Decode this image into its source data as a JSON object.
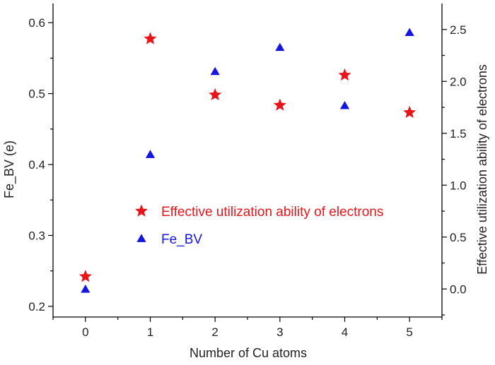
{
  "chart_data": {
    "type": "scatter",
    "title": "",
    "xlabel": "Number of Cu atoms",
    "ylabel_left": "Fe_BV (e)",
    "ylabel_right": "Effective utilization ability of electrons",
    "x_ticks": [
      "0",
      "1",
      "2",
      "3",
      "4",
      "5"
    ],
    "xlim": [
      -0.5,
      5.5
    ],
    "y_left_ticks": [
      "0.2",
      "0.3",
      "0.4",
      "0.5",
      "0.6"
    ],
    "y_left_lim": [
      0.185,
      0.627
    ],
    "y_right_ticks": [
      "0.0",
      "0.5",
      "1.0",
      "1.5",
      "2.0",
      "2.5"
    ],
    "y_right_lim": [
      -0.27,
      2.75
    ],
    "legend_position": "center-right",
    "grid": false,
    "series": [
      {
        "name": "Effective utilization ability of electrons",
        "axis": "right",
        "marker": "star",
        "color": "#e8141a",
        "x": [
          0,
          1,
          2,
          3,
          4,
          5
        ],
        "y": [
          0.12,
          2.41,
          1.87,
          1.77,
          2.06,
          1.7
        ]
      },
      {
        "name": "Fe_BV",
        "axis": "left",
        "marker": "triangle",
        "color": "#1515e0",
        "x": [
          0,
          1,
          2,
          3,
          4,
          5
        ],
        "y": [
          0.224,
          0.414,
          0.531,
          0.565,
          0.483,
          0.586
        ]
      }
    ]
  }
}
